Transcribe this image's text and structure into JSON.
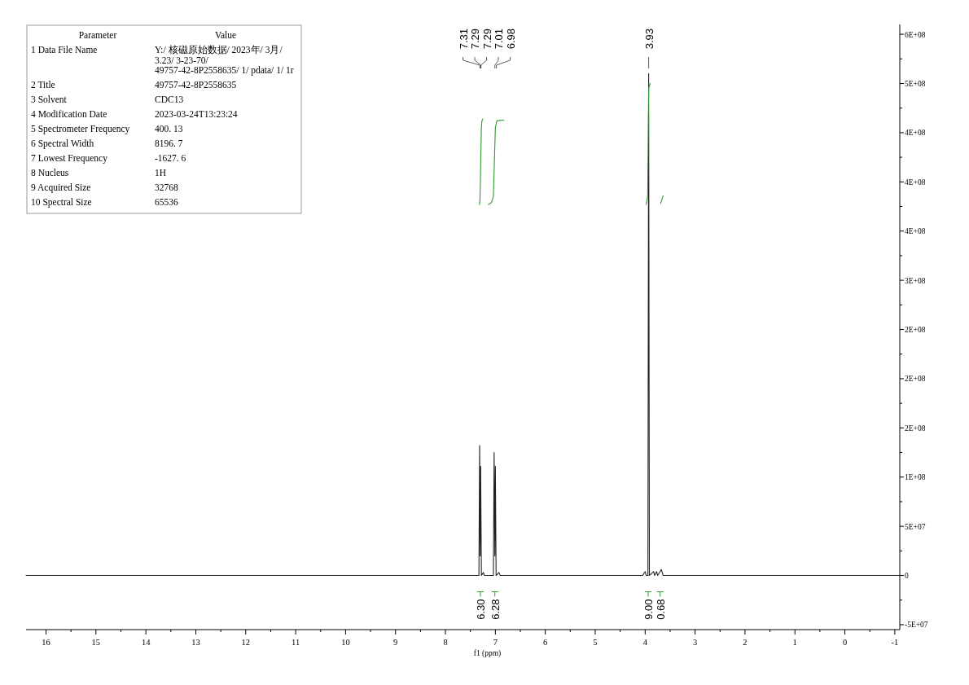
{
  "chart_data": [
    {
      "type": "other",
      "categories": [
        "Parameter",
        "Value"
      ],
      "y_categories": [
        "1 Data File Name",
        "2 Title",
        "3 Solvent",
        "4 Modification Date",
        "5 Spectrometer Frequency",
        "6 Spectral Width",
        "7 Lowest Frequency",
        "8 Nucleus",
        "9 Acquired Size",
        "10 Spectral Size"
      ],
      "cell_labels": [
        [
          "Y:/ 核磁原始数据/ 2023年/ 3月/ 3.23/ 3-23-70/ 49757-42-8P2558635/ 1/ pdata/ 1/ 1r"
        ],
        [
          "49757-42-8P2558635"
        ],
        [
          "CDC13"
        ],
        [
          "2023-03-24T13:23:24"
        ],
        [
          "400. 13"
        ],
        [
          "8196. 7"
        ],
        [
          "-1627. 6"
        ],
        [
          "1H"
        ],
        [
          "32768"
        ],
        [
          "65536"
        ]
      ]
    },
    {
      "type": "line",
      "xlabel": "f1 (ppm)",
      "xlim": [
        16.4,
        -1.1
      ],
      "xticks": [
        16,
        15,
        14,
        13,
        12,
        11,
        10,
        9,
        8,
        7,
        6,
        5,
        4,
        3,
        2,
        1,
        0,
        -1
      ],
      "ylim": [
        -55000000,
        560000000
      ],
      "yticks": [
        {
          "value": -50000000,
          "label": "-5E+07"
        },
        0,
        {
          "value": 50000000,
          "label": "5E+07"
        },
        {
          "value": 100000000,
          "label": "1E+08"
        },
        {
          "value": 150000000,
          "label": "2E+08"
        },
        {
          "value": 200000000,
          "label": "2E+08"
        },
        {
          "value": 250000000,
          "label": "2E+08"
        },
        {
          "value": 300000000,
          "label": "3E+08"
        },
        {
          "value": 350000000,
          "label": "4E+08"
        },
        {
          "value": 400000000,
          "label": "4E+08"
        },
        {
          "value": 450000000,
          "label": "4E+08"
        },
        {
          "value": 500000000,
          "label": "5E+08"
        },
        {
          "value": 550000000,
          "label": "6E+08"
        }
      ],
      "series": [
        {
          "color": "#222222",
          "x": [
            16.4,
            7.45,
            7.33,
            7.315,
            7.305,
            7.295,
            7.28,
            7.24,
            7.22,
            7.04,
            7.025,
            7.01,
            7.0,
            6.985,
            6.93,
            6.9,
            4.05,
            4.0,
            3.98,
            3.945,
            3.93,
            3.915,
            3.83,
            3.81,
            3.77,
            3.75,
            3.675,
            3.64,
            -1.1
          ],
          "values": [
            0,
            0,
            0,
            132000000,
            20000000,
            111000000,
            0,
            3000000,
            0,
            0,
            125000000,
            20000000,
            111000000,
            0,
            3000000,
            0,
            0,
            4000000,
            0,
            0,
            510000000,
            0,
            4000000,
            0,
            4000000,
            0,
            6000000,
            0,
            0
          ]
        },
        {
          "color": "#339933",
          "x": [
            7.32,
            7.31,
            7.3,
            7.29,
            7.28,
            7.27,
            7.25
          ],
          "values": [
            377000000,
            380000000,
            400000000,
            430000000,
            455000000,
            462000000,
            464000000
          ]
        },
        {
          "color": "#339933",
          "x": [
            7.14,
            7.08,
            7.04,
            7.02,
            7.0,
            6.97,
            6.83
          ],
          "values": [
            377000000,
            379000000,
            385000000,
            420000000,
            455000000,
            462000000,
            463000000
          ]
        },
        {
          "color": "#339933",
          "x": [
            3.98,
            3.95,
            3.94,
            3.93,
            3.9
          ],
          "values": [
            377000000,
            385000000,
            440000000,
            495000000,
            500000000
          ]
        },
        {
          "color": "#339933",
          "x": [
            3.69,
            3.64
          ],
          "values": [
            378000000,
            386000000
          ]
        }
      ],
      "annotations": [
        {
          "text": "7.31",
          "x": 7.31
        },
        {
          "text": "7.29",
          "x": 7.29
        },
        {
          "text": "7.29",
          "x": 7.29
        },
        {
          "text": "7.01",
          "x": 7.01
        },
        {
          "text": "6.98",
          "x": 6.98
        },
        {
          "text": "3.93",
          "x": 3.93
        },
        {
          "text": "6.30",
          "x": 7.3
        },
        {
          "text": "6.28",
          "x": 7.01
        },
        {
          "text": "9.00",
          "x": 3.94
        },
        {
          "text": "0.68",
          "x": 3.7
        }
      ]
    }
  ]
}
